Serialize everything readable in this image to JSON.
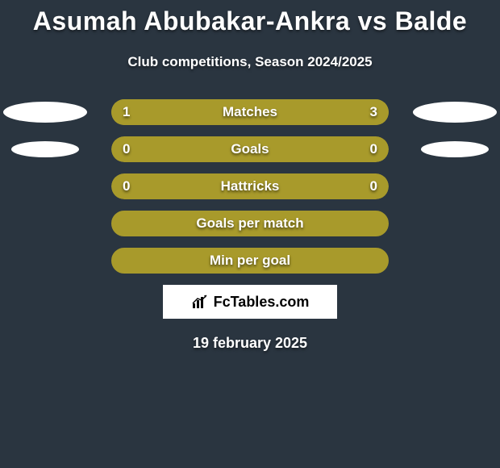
{
  "title": "Asumah Abubakar-Ankra vs Balde",
  "subtitle": "Club competitions, Season 2024/2025",
  "colors": {
    "background": "#2a3540",
    "bar_solid": "#a89a2b",
    "bar_border": "#a89a2b",
    "text": "#ffffff"
  },
  "stats": [
    {
      "label": "Matches",
      "left_value": "1",
      "right_value": "3",
      "left_fill_pct": 25,
      "right_fill_pct": 75,
      "fill_mode": "split",
      "show_left_avatar": true,
      "show_right_avatar": true
    },
    {
      "label": "Goals",
      "left_value": "0",
      "right_value": "0",
      "left_fill_pct": 100,
      "right_fill_pct": 0,
      "fill_mode": "solid",
      "show_left_avatar": true,
      "show_right_avatar": true
    },
    {
      "label": "Hattricks",
      "left_value": "0",
      "right_value": "0",
      "left_fill_pct": 100,
      "right_fill_pct": 0,
      "fill_mode": "solid",
      "show_left_avatar": false,
      "show_right_avatar": false
    },
    {
      "label": "Goals per match",
      "left_value": "",
      "right_value": "",
      "fill_mode": "outline",
      "show_left_avatar": false,
      "show_right_avatar": false
    },
    {
      "label": "Min per goal",
      "left_value": "",
      "right_value": "",
      "fill_mode": "outline",
      "show_left_avatar": false,
      "show_right_avatar": false
    }
  ],
  "logo_text": "FcTables.com",
  "date": "19 february 2025"
}
